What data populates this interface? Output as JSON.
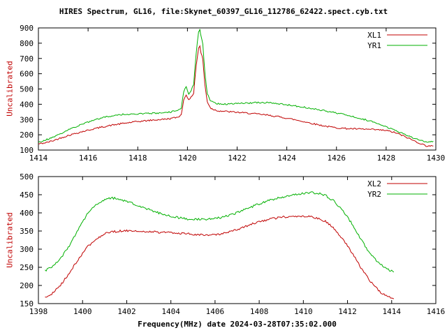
{
  "title": "HIRES Spectrum, GL16, file:Skynet_60397_GL16_112786_62422.spect.cyb.txt",
  "xlabel": "Frequency(MHz) date 2024-03-28T07:35:02.000",
  "colors": {
    "background": "#ffffff",
    "axis": "#000000",
    "red_series": "#c00000",
    "green_series": "#00b000",
    "ylabel_text": "#c00000"
  },
  "chart_data": [
    {
      "type": "line",
      "ylabel": "Uncalibrated",
      "xlim": [
        1414,
        1430
      ],
      "ylim": [
        100,
        900
      ],
      "xticks": [
        1414,
        1416,
        1418,
        1420,
        1422,
        1424,
        1426,
        1428,
        1430
      ],
      "yticks": [
        100,
        200,
        300,
        400,
        500,
        600,
        700,
        800,
        900
      ],
      "grid": false,
      "legend_position": "top-right",
      "noise": 5,
      "series": [
        {
          "name": "XL1",
          "color": "#c00000",
          "points": [
            [
              1414.0,
              140
            ],
            [
              1414.3,
              148
            ],
            [
              1414.6,
              162
            ],
            [
              1415.0,
              185
            ],
            [
              1415.4,
              205
            ],
            [
              1415.8,
              222
            ],
            [
              1416.2,
              238
            ],
            [
              1416.6,
              252
            ],
            [
              1417.0,
              264
            ],
            [
              1417.4,
              274
            ],
            [
              1417.8,
              283
            ],
            [
              1418.2,
              290
            ],
            [
              1418.6,
              296
            ],
            [
              1419.0,
              301
            ],
            [
              1419.3,
              306
            ],
            [
              1419.6,
              315
            ],
            [
              1419.75,
              330
            ],
            [
              1419.85,
              430
            ],
            [
              1419.95,
              465
            ],
            [
              1420.05,
              425
            ],
            [
              1420.15,
              445
            ],
            [
              1420.25,
              475
            ],
            [
              1420.35,
              650
            ],
            [
              1420.45,
              770
            ],
            [
              1420.5,
              780
            ],
            [
              1420.55,
              735
            ],
            [
              1420.62,
              695
            ],
            [
              1420.7,
              530
            ],
            [
              1420.8,
              415
            ],
            [
              1420.95,
              372
            ],
            [
              1421.2,
              358
            ],
            [
              1421.6,
              352
            ],
            [
              1422.0,
              347
            ],
            [
              1422.4,
              342
            ],
            [
              1422.8,
              336
            ],
            [
              1423.2,
              329
            ],
            [
              1423.6,
              320
            ],
            [
              1424.0,
              309
            ],
            [
              1424.4,
              296
            ],
            [
              1424.8,
              282
            ],
            [
              1425.2,
              268
            ],
            [
              1425.6,
              255
            ],
            [
              1426.0,
              246
            ],
            [
              1426.4,
              241
            ],
            [
              1426.8,
              238
            ],
            [
              1427.2,
              236
            ],
            [
              1427.6,
              233
            ],
            [
              1428.0,
              228
            ],
            [
              1428.4,
              212
            ],
            [
              1428.8,
              185
            ],
            [
              1429.2,
              155
            ],
            [
              1429.6,
              128
            ],
            [
              1429.9,
              126
            ]
          ]
        },
        {
          "name": "YR1",
          "color": "#00b000",
          "points": [
            [
              1414.0,
              152
            ],
            [
              1414.3,
              166
            ],
            [
              1414.6,
              186
            ],
            [
              1415.0,
              216
            ],
            [
              1415.4,
              246
            ],
            [
              1415.8,
              272
            ],
            [
              1416.2,
              295
            ],
            [
              1416.6,
              313
            ],
            [
              1417.0,
              326
            ],
            [
              1417.4,
              333
            ],
            [
              1417.8,
              337
            ],
            [
              1418.2,
              339
            ],
            [
              1418.6,
              341
            ],
            [
              1419.0,
              344
            ],
            [
              1419.3,
              349
            ],
            [
              1419.6,
              358
            ],
            [
              1419.75,
              378
            ],
            [
              1419.85,
              485
            ],
            [
              1419.95,
              515
            ],
            [
              1420.05,
              470
            ],
            [
              1420.15,
              492
            ],
            [
              1420.25,
              530
            ],
            [
              1420.35,
              730
            ],
            [
              1420.45,
              880
            ],
            [
              1420.5,
              888
            ],
            [
              1420.55,
              845
            ],
            [
              1420.62,
              790
            ],
            [
              1420.7,
              610
            ],
            [
              1420.8,
              465
            ],
            [
              1420.95,
              418
            ],
            [
              1421.2,
              404
            ],
            [
              1421.6,
              401
            ],
            [
              1422.0,
              404
            ],
            [
              1422.4,
              408
            ],
            [
              1422.8,
              411
            ],
            [
              1423.2,
              410
            ],
            [
              1423.6,
              405
            ],
            [
              1424.0,
              397
            ],
            [
              1424.4,
              388
            ],
            [
              1424.8,
              378
            ],
            [
              1425.2,
              367
            ],
            [
              1425.6,
              355
            ],
            [
              1426.0,
              343
            ],
            [
              1426.4,
              330
            ],
            [
              1426.8,
              315
            ],
            [
              1427.2,
              297
            ],
            [
              1427.6,
              277
            ],
            [
              1428.0,
              253
            ],
            [
              1428.4,
              226
            ],
            [
              1428.8,
              197
            ],
            [
              1429.2,
              172
            ],
            [
              1429.6,
              152
            ],
            [
              1429.9,
              158
            ]
          ]
        }
      ]
    },
    {
      "type": "line",
      "ylabel": "Uncalibrated",
      "xlim": [
        1398,
        1416
      ],
      "ylim": [
        150,
        500
      ],
      "xticks": [
        1398,
        1400,
        1402,
        1404,
        1406,
        1408,
        1410,
        1412,
        1414,
        1416
      ],
      "yticks": [
        150,
        200,
        250,
        300,
        350,
        400,
        450,
        500
      ],
      "grid": false,
      "legend_position": "top-right",
      "noise": 3,
      "series": [
        {
          "name": "XL2",
          "color": "#c00000",
          "points": [
            [
              1398.3,
              166
            ],
            [
              1398.6,
              176
            ],
            [
              1399.0,
              200
            ],
            [
              1399.4,
              234
            ],
            [
              1399.8,
              272
            ],
            [
              1400.2,
              305
            ],
            [
              1400.6,
              328
            ],
            [
              1401.0,
              342
            ],
            [
              1401.4,
              348
            ],
            [
              1401.8,
              351
            ],
            [
              1402.2,
              351
            ],
            [
              1402.6,
              349
            ],
            [
              1403.0,
              348
            ],
            [
              1403.4,
              347
            ],
            [
              1403.8,
              346
            ],
            [
              1404.2,
              345
            ],
            [
              1404.6,
              343
            ],
            [
              1405.0,
              341
            ],
            [
              1405.4,
              339
            ],
            [
              1405.8,
              339
            ],
            [
              1406.2,
              341
            ],
            [
              1406.6,
              346
            ],
            [
              1407.0,
              354
            ],
            [
              1407.4,
              363
            ],
            [
              1407.8,
              372
            ],
            [
              1408.2,
              379
            ],
            [
              1408.6,
              384
            ],
            [
              1409.0,
              388
            ],
            [
              1409.4,
              390
            ],
            [
              1409.8,
              391
            ],
            [
              1410.2,
              390
            ],
            [
              1410.6,
              386
            ],
            [
              1411.0,
              376
            ],
            [
              1411.4,
              357
            ],
            [
              1411.8,
              327
            ],
            [
              1412.2,
              290
            ],
            [
              1412.6,
              250
            ],
            [
              1413.0,
              214
            ],
            [
              1413.4,
              186
            ],
            [
              1413.8,
              169
            ],
            [
              1414.1,
              163
            ]
          ]
        },
        {
          "name": "YR2",
          "color": "#00b000",
          "points": [
            [
              1398.3,
              240
            ],
            [
              1398.6,
              250
            ],
            [
              1399.0,
              274
            ],
            [
              1399.4,
              310
            ],
            [
              1399.8,
              355
            ],
            [
              1400.2,
              395
            ],
            [
              1400.6,
              422
            ],
            [
              1401.0,
              437
            ],
            [
              1401.3,
              441
            ],
            [
              1401.6,
              439
            ],
            [
              1402.0,
              432
            ],
            [
              1402.4,
              423
            ],
            [
              1402.8,
              414
            ],
            [
              1403.2,
              405
            ],
            [
              1403.6,
              397
            ],
            [
              1404.0,
              391
            ],
            [
              1404.4,
              386
            ],
            [
              1404.8,
              383
            ],
            [
              1405.2,
              382
            ],
            [
              1405.6,
              382
            ],
            [
              1406.0,
              384
            ],
            [
              1406.4,
              389
            ],
            [
              1406.8,
              396
            ],
            [
              1407.2,
              405
            ],
            [
              1407.6,
              415
            ],
            [
              1408.0,
              425
            ],
            [
              1408.4,
              433
            ],
            [
              1408.8,
              440
            ],
            [
              1409.2,
              446
            ],
            [
              1409.6,
              450
            ],
            [
              1410.0,
              454
            ],
            [
              1410.3,
              456
            ],
            [
              1410.6,
              455
            ],
            [
              1411.0,
              448
            ],
            [
              1411.4,
              432
            ],
            [
              1411.8,
              406
            ],
            [
              1412.2,
              370
            ],
            [
              1412.6,
              328
            ],
            [
              1413.0,
              290
            ],
            [
              1413.4,
              262
            ],
            [
              1413.8,
              245
            ],
            [
              1414.1,
              237
            ]
          ]
        }
      ]
    }
  ]
}
